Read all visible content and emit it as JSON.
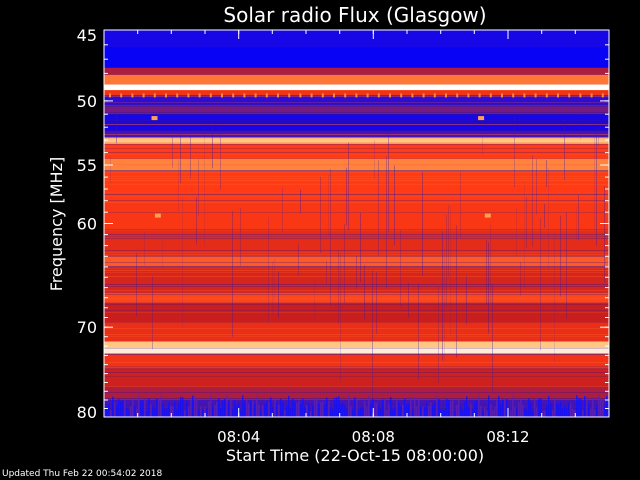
{
  "chart_data": {
    "type": "heatmap",
    "title": "Solar radio Flux (Glasgow)",
    "xlabel": "Start Time (22-Oct-15 08:00:00)",
    "ylabel": "Frequency [MHz]",
    "x_ticks": [
      "08:04",
      "08:08",
      "08:12"
    ],
    "x_tick_minutes": [
      4,
      8,
      12
    ],
    "xlim_minutes": [
      0,
      15
    ],
    "y_ticks": [
      45,
      50,
      55,
      60,
      70,
      80
    ],
    "ylim": [
      45,
      80
    ],
    "y_scale": "log",
    "colormap": [
      "#0000ff",
      "#5a1aa0",
      "#c81e1e",
      "#ff3a14",
      "#ffb45a",
      "#ffffff"
    ],
    "bands": [
      {
        "f0": 45.0,
        "f1": 46.2,
        "level": 0.05
      },
      {
        "f0": 46.2,
        "f1": 47.6,
        "level": 0.02
      },
      {
        "f0": 47.6,
        "f1": 48.1,
        "level": 0.35
      },
      {
        "f0": 48.1,
        "f1": 48.8,
        "level": 0.7
      },
      {
        "f0": 48.8,
        "f1": 49.2,
        "level": 1.0
      },
      {
        "f0": 49.2,
        "f1": 49.6,
        "level": 0.55
      },
      {
        "f0": 49.6,
        "f1": 50.3,
        "level": 0.1
      },
      {
        "f0": 50.3,
        "f1": 51.0,
        "level": 0.25
      },
      {
        "f0": 51.0,
        "f1": 52.3,
        "level": 0.05
      },
      {
        "f0": 52.3,
        "f1": 52.8,
        "level": 0.15
      },
      {
        "f0": 52.8,
        "f1": 53.3,
        "level": 0.85
      },
      {
        "f0": 53.3,
        "f1": 54.5,
        "level": 0.6
      },
      {
        "f0": 54.5,
        "f1": 55.5,
        "level": 0.72
      },
      {
        "f0": 55.5,
        "f1": 58.0,
        "level": 0.6
      },
      {
        "f0": 58.0,
        "f1": 60.5,
        "level": 0.58
      },
      {
        "f0": 60.5,
        "f1": 63.0,
        "level": 0.5
      },
      {
        "f0": 63.0,
        "f1": 64.0,
        "level": 0.65
      },
      {
        "f0": 64.0,
        "f1": 66.5,
        "level": 0.45
      },
      {
        "f0": 66.5,
        "f1": 67.5,
        "level": 0.62
      },
      {
        "f0": 67.5,
        "f1": 69.5,
        "level": 0.4
      },
      {
        "f0": 69.5,
        "f1": 71.5,
        "level": 0.52
      },
      {
        "f0": 71.5,
        "f1": 72.2,
        "level": 0.85
      },
      {
        "f0": 72.2,
        "f1": 72.8,
        "level": 0.95
      },
      {
        "f0": 72.8,
        "f1": 74.5,
        "level": 0.55
      },
      {
        "f0": 74.5,
        "f1": 76.5,
        "level": 0.42
      },
      {
        "f0": 76.5,
        "f1": 78.0,
        "level": 0.35
      },
      {
        "f0": 78.0,
        "f1": 80.0,
        "level": 0.15
      }
    ]
  },
  "footer": {
    "updated": "Updated Thu Feb 22 00:54:02 2018"
  }
}
